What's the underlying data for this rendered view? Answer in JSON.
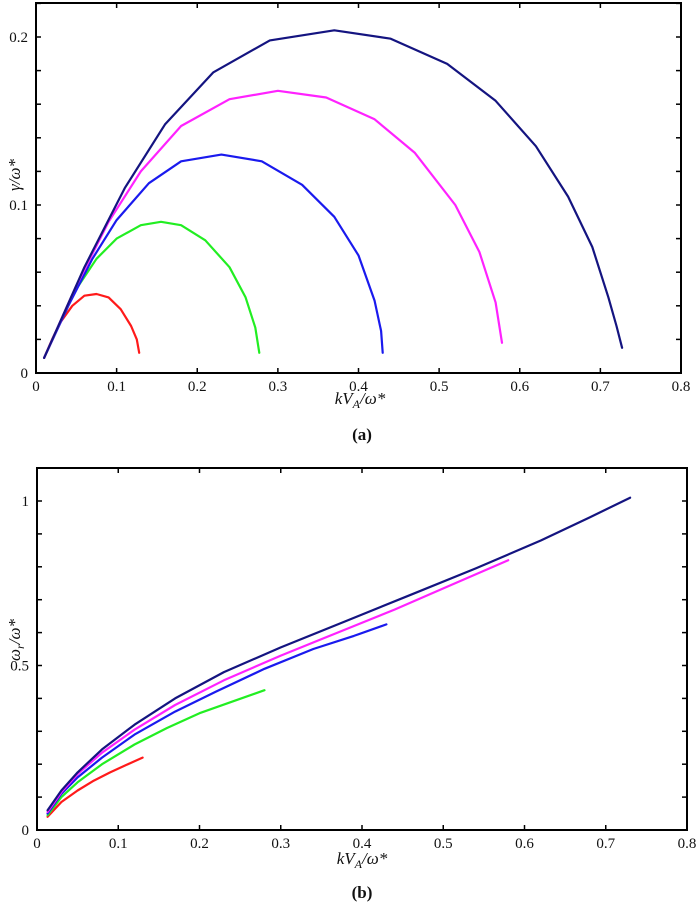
{
  "chart_data": [
    {
      "panel": "(a)",
      "type": "line",
      "xlabel": "kV_A/ω*",
      "ylabel": "γ/ω*",
      "xlim": [
        0,
        0.8
      ],
      "ylim": [
        0,
        0.22
      ],
      "xticks": [
        "0",
        "0.1",
        "0.2",
        "0.3",
        "0.4",
        "0.5",
        "0.6",
        "0.7",
        "0.8"
      ],
      "yticks": [
        "0",
        "0.1",
        "0.2"
      ],
      "grid": false,
      "legend": null,
      "series": [
        {
          "name": "red",
          "color": "#ff1a1a",
          "x": [
            0.01,
            0.02,
            0.03,
            0.045,
            0.06,
            0.075,
            0.09,
            0.105,
            0.118,
            0.125,
            0.128
          ],
          "y": [
            0.009,
            0.02,
            0.03,
            0.04,
            0.046,
            0.047,
            0.045,
            0.038,
            0.028,
            0.02,
            0.012
          ]
        },
        {
          "name": "green",
          "color": "#22ee22",
          "x": [
            0.01,
            0.03,
            0.05,
            0.075,
            0.1,
            0.13,
            0.155,
            0.18,
            0.21,
            0.24,
            0.26,
            0.272,
            0.277
          ],
          "y": [
            0.009,
            0.03,
            0.05,
            0.068,
            0.08,
            0.088,
            0.09,
            0.088,
            0.079,
            0.063,
            0.045,
            0.027,
            0.012
          ]
        },
        {
          "name": "blue",
          "color": "#1a1aee",
          "x": [
            0.01,
            0.04,
            0.07,
            0.1,
            0.14,
            0.18,
            0.23,
            0.28,
            0.33,
            0.37,
            0.4,
            0.42,
            0.428,
            0.43
          ],
          "y": [
            0.009,
            0.04,
            0.068,
            0.091,
            0.113,
            0.126,
            0.13,
            0.126,
            0.112,
            0.093,
            0.07,
            0.043,
            0.025,
            0.012
          ]
        },
        {
          "name": "magenta",
          "color": "#ff22ff",
          "x": [
            0.01,
            0.05,
            0.09,
            0.13,
            0.18,
            0.24,
            0.3,
            0.36,
            0.42,
            0.47,
            0.52,
            0.55,
            0.57,
            0.578
          ],
          "y": [
            0.009,
            0.052,
            0.09,
            0.12,
            0.147,
            0.163,
            0.168,
            0.164,
            0.151,
            0.131,
            0.1,
            0.072,
            0.042,
            0.018
          ]
        },
        {
          "name": "navy",
          "color": "#141480",
          "x": [
            0.01,
            0.06,
            0.11,
            0.16,
            0.22,
            0.29,
            0.37,
            0.44,
            0.51,
            0.57,
            0.62,
            0.66,
            0.69,
            0.71,
            0.72,
            0.727
          ],
          "y": [
            0.009,
            0.063,
            0.11,
            0.148,
            0.179,
            0.198,
            0.204,
            0.199,
            0.184,
            0.162,
            0.135,
            0.105,
            0.075,
            0.045,
            0.028,
            0.015
          ]
        }
      ]
    },
    {
      "panel": "(b)",
      "type": "line",
      "xlabel": "kV_A/ω*",
      "ylabel": "ω_r/ω*",
      "xlim": [
        0,
        0.8
      ],
      "ylim": [
        0,
        1.1
      ],
      "xticks": [
        "0",
        "0.1",
        "0.2",
        "0.3",
        "0.4",
        "0.5",
        "0.6",
        "0.7",
        "0.8"
      ],
      "yticks": [
        "0",
        "0.5",
        "1"
      ],
      "grid": false,
      "legend": null,
      "series": [
        {
          "name": "red",
          "color": "#ff1a1a",
          "x": [
            0.013,
            0.03,
            0.05,
            0.07,
            0.09,
            0.11,
            0.13
          ],
          "y": [
            0.04,
            0.085,
            0.12,
            0.15,
            0.175,
            0.198,
            0.22
          ]
        },
        {
          "name": "green",
          "color": "#22ee22",
          "x": [
            0.013,
            0.03,
            0.05,
            0.08,
            0.12,
            0.16,
            0.2,
            0.24,
            0.28
          ],
          "y": [
            0.045,
            0.1,
            0.145,
            0.2,
            0.26,
            0.31,
            0.355,
            0.39,
            0.425
          ]
        },
        {
          "name": "blue",
          "color": "#1a1aee",
          "x": [
            0.013,
            0.03,
            0.05,
            0.08,
            0.12,
            0.17,
            0.22,
            0.28,
            0.34,
            0.39,
            0.43
          ],
          "y": [
            0.05,
            0.11,
            0.16,
            0.22,
            0.29,
            0.36,
            0.42,
            0.49,
            0.55,
            0.59,
            0.625
          ]
        },
        {
          "name": "magenta",
          "color": "#ff22ff",
          "x": [
            0.013,
            0.03,
            0.05,
            0.08,
            0.12,
            0.17,
            0.23,
            0.3,
            0.37,
            0.44,
            0.51,
            0.58
          ],
          "y": [
            0.055,
            0.115,
            0.17,
            0.235,
            0.305,
            0.38,
            0.455,
            0.53,
            0.6,
            0.67,
            0.745,
            0.82
          ]
        },
        {
          "name": "navy",
          "color": "#141480",
          "x": [
            0.013,
            0.03,
            0.05,
            0.08,
            0.12,
            0.17,
            0.23,
            0.3,
            0.38,
            0.46,
            0.54,
            0.62,
            0.68,
            0.73
          ],
          "y": [
            0.06,
            0.12,
            0.175,
            0.245,
            0.32,
            0.4,
            0.48,
            0.555,
            0.635,
            0.715,
            0.795,
            0.88,
            0.95,
            1.01
          ]
        }
      ]
    }
  ],
  "labels": {
    "a": {
      "xlabel_k": "kV",
      "xlabel_sub": "A",
      "xlabel_rest": "/ω*",
      "ylabel": "γ/ω*",
      "panel": "(a)",
      "xticks": [
        "0",
        "0.1",
        "0.2",
        "0.3",
        "0.4",
        "0.5",
        "0.6",
        "0.7",
        "0.8"
      ],
      "yticks": [
        "0",
        "0.1",
        "0.2"
      ]
    },
    "b": {
      "xlabel_k": "kV",
      "xlabel_sub": "A",
      "xlabel_rest": "/ω*",
      "ylabel": "ω",
      "ylabel_sub": "r",
      "ylabel_rest": "/ω*",
      "panel": "(b)",
      "xticks": [
        "0",
        "0.1",
        "0.2",
        "0.3",
        "0.4",
        "0.5",
        "0.6",
        "0.7",
        "0.8"
      ],
      "yticks": [
        "0",
        "0.5",
        "1"
      ]
    }
  }
}
